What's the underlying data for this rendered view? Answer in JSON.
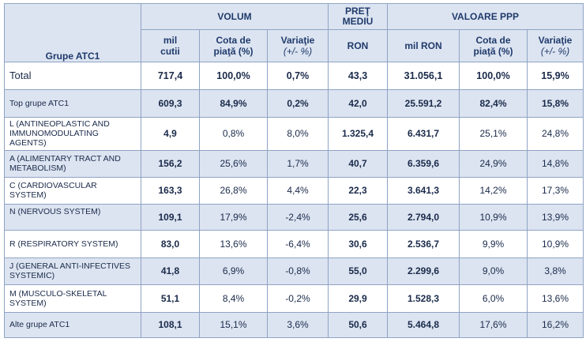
{
  "header": {
    "group_label": "Grupe ATC1",
    "volum": "VOLUM",
    "pret_line1": "PREŢ",
    "pret_line2": "MEDIU",
    "valoare": "VALOARE PPP",
    "sub": {
      "mil_cutii_1": "mil",
      "mil_cutii_2": "cutii",
      "cota1_a": "Cota de",
      "cota1_b": "piaţă (%)",
      "var1_a": "Variaţie",
      "var1_b": "(+/- %)",
      "ron": "RON",
      "mil_ron": "mil RON",
      "cota2_a": "Cota de",
      "cota2_b": "piaţă (%)",
      "var2_a": "Variaţie",
      "var2_b": "(+/- %)"
    }
  },
  "rows": [
    {
      "label": "Total",
      "mil_cutii": "717,4",
      "cota_volum": "100,0%",
      "var_volum": "0,7%",
      "pret": "43,3",
      "mil_ron": "31.056,1",
      "cota_valoare": "100,0%",
      "var_valoare": "15,9%"
    },
    {
      "label": "Top grupe ATC1",
      "mil_cutii": "609,3",
      "cota_volum": "84,9%",
      "var_volum": "0,2%",
      "pret": "42,0",
      "mil_ron": "25.591,2",
      "cota_valoare": "82,4%",
      "var_valoare": "15,8%"
    },
    {
      "label": "L (ANTINEOPLASTIC AND IMMUNOMODULATING AGENTS)",
      "mil_cutii": "4,9",
      "cota_volum": "0,8%",
      "var_volum": "8,0%",
      "pret": "1.325,4",
      "mil_ron": "6.431,7",
      "cota_valoare": "25,1%",
      "var_valoare": "24,8%"
    },
    {
      "label": "A (ALIMENTARY TRACT AND METABOLISM)",
      "mil_cutii": "156,2",
      "cota_volum": "25,6%",
      "var_volum": "1,7%",
      "pret": "40,7",
      "mil_ron": "6.359,6",
      "cota_valoare": "24,9%",
      "var_valoare": "14,8%"
    },
    {
      "label": "C (CARDIOVASCULAR SYSTEM)",
      "mil_cutii": "163,3",
      "cota_volum": "26,8%",
      "var_volum": "4,4%",
      "pret": "22,3",
      "mil_ron": "3.641,3",
      "cota_valoare": "14,2%",
      "var_valoare": "17,3%"
    },
    {
      "label": "N (NERVOUS SYSTEM)",
      "mil_cutii": "109,1",
      "cota_volum": "17,9%",
      "var_volum": "-2,4%",
      "pret": "25,6",
      "mil_ron": "2.794,0",
      "cota_valoare": "10,9%",
      "var_valoare": "13,9%"
    },
    {
      "label": "R (RESPIRATORY SYSTEM)",
      "mil_cutii": "83,0",
      "cota_volum": "13,6%",
      "var_volum": "-6,4%",
      "pret": "30,6",
      "mil_ron": "2.536,7",
      "cota_valoare": "9,9%",
      "var_valoare": "10,9%"
    },
    {
      "label": "J (GENERAL ANTI-INFECTIVES SYSTEMIC)",
      "mil_cutii": "41,8",
      "cota_volum": "6,9%",
      "var_volum": "-0,8%",
      "pret": "55,0",
      "mil_ron": "2.299,6",
      "cota_valoare": "9,0%",
      "var_valoare": "3,8%"
    },
    {
      "label": "M (MUSCULO-SKELETAL SYSTEM)",
      "mil_cutii": "51,1",
      "cota_volum": "8,4%",
      "var_volum": "-0,2%",
      "pret": "29,9",
      "mil_ron": "1.528,3",
      "cota_valoare": "6,0%",
      "var_valoare": "13,6%"
    },
    {
      "label": "Alte grupe ATC1",
      "mil_cutii": "108,1",
      "cota_volum": "15,1%",
      "var_volum": "3,6%",
      "pret": "50,6",
      "mil_ron": "5.464,8",
      "cota_valoare": "17,6%",
      "var_valoare": "16,2%"
    }
  ],
  "colors": {
    "header_bg": "#dce4f1",
    "row_alt_bg": "#dce4f1",
    "border": "#8fa3c4",
    "text": "#1a2a4a"
  }
}
